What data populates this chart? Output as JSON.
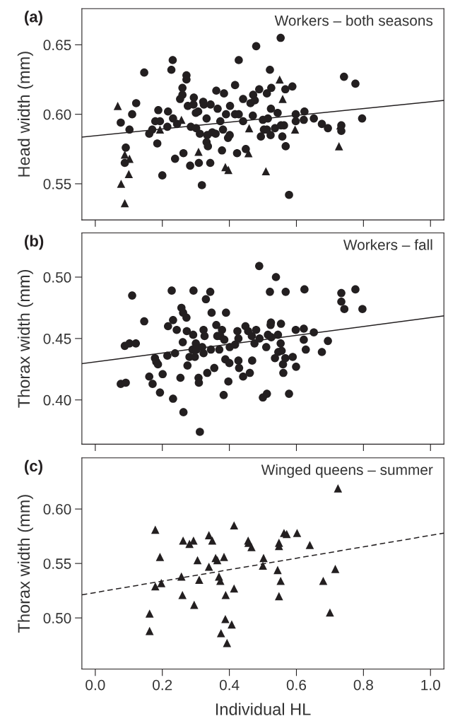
{
  "chart_data": [
    {
      "type": "scatter",
      "annotations": [
        "(a)",
        "Workers – both seasons"
      ],
      "ylabel": "Head width (mm)",
      "xlim": [
        -0.04,
        1.04
      ],
      "ylim": [
        0.524,
        0.676
      ],
      "xticks": [
        {
          "value": 0,
          "label": null
        },
        {
          "value": 0.2,
          "label": null
        },
        {
          "value": 0.4,
          "label": null
        },
        {
          "value": 0.6,
          "label": null
        },
        {
          "value": 0.8,
          "label": null
        },
        {
          "value": 1.0,
          "label": null
        }
      ],
      "yticks": [
        0.55,
        {
          "value": 0.6,
          "label": "0.60"
        },
        0.65
      ],
      "tick_labels": "y",
      "grid": false,
      "legend": false,
      "series": [
        {
          "type": "scatter",
          "marker": "circle",
          "color": "#231f20",
          "x": [
            0.076,
            0.11,
            0.122,
            0.102,
            0.091,
            0.088,
            0.146,
            0.161,
            0.17,
            0.179,
            0.188,
            0.193,
            0.185,
            0.2,
            0.215,
            0.217,
            0.231,
            0.227,
            0.232,
            0.238,
            0.244,
            0.26,
            0.26,
            0.253,
            0.263,
            0.272,
            0.272,
            0.276,
            0.283,
            0.285,
            0.294,
            0.293,
            0.3,
            0.301,
            0.307,
            0.309,
            0.318,
            0.312,
            0.322,
            0.324,
            0.332,
            0.332,
            0.336,
            0.334,
            0.343,
            0.344,
            0.349,
            0.361,
            0.365,
            0.359,
            0.378,
            0.384,
            0.373,
            0.381,
            0.39,
            0.396,
            0.402,
            0.401,
            0.417,
            0.423,
            0.428,
            0.417,
            0.428,
            0.441,
            0.441,
            0.449,
            0.463,
            0.471,
            0.476,
            0.47,
            0.48,
            0.489,
            0.5,
            0.494,
            0.503,
            0.512,
            0.515,
            0.521,
            0.524,
            0.525,
            0.523,
            0.512,
            0.536,
            0.553,
            0.544,
            0.554,
            0.563,
            0.558,
            0.568,
            0.567,
            0.588,
            0.578,
            0.598,
            0.598,
            0.624,
            0.622,
            0.652,
            0.676,
            0.694,
            0.734,
            0.734,
            0.742,
            0.776,
            0.796
          ],
          "values": [
            0.594,
            0.6,
            0.608,
            0.589,
            0.576,
            0.565,
            0.63,
            0.586,
            0.589,
            0.595,
            0.603,
            0.595,
            0.579,
            0.556,
            0.591,
            0.602,
            0.639,
            0.632,
            0.597,
            0.568,
            0.593,
            0.619,
            0.614,
            0.611,
            0.572,
            0.628,
            0.625,
            0.606,
            0.563,
            0.591,
            0.612,
            0.607,
            0.601,
            0.59,
            0.602,
            0.565,
            0.549,
            0.586,
            0.609,
            0.607,
            0.597,
            0.58,
            0.577,
            0.585,
            0.565,
            0.607,
            0.587,
            0.617,
            0.604,
            0.586,
            0.574,
            0.615,
            0.595,
            0.589,
            0.6,
            0.583,
            0.606,
            0.585,
            0.621,
            0.572,
            0.639,
            0.6,
            0.6,
            0.595,
            0.611,
            0.575,
            0.608,
            0.614,
            0.61,
            0.599,
            0.649,
            0.618,
            0.596,
            0.584,
            0.589,
            0.615,
            0.597,
            0.632,
            0.604,
            0.619,
            0.585,
            0.589,
            0.59,
            0.655,
            0.601,
            0.592,
            0.592,
            0.584,
            0.577,
            0.618,
            0.62,
            0.542,
            0.6,
            0.595,
            0.602,
            0.596,
            0.597,
            0.593,
            0.59,
            0.592,
            0.588,
            0.627,
            0.622,
            0.597
          ]
        },
        {
          "type": "scatter",
          "marker": "triangle",
          "color": "#231f20",
          "x": [
            0.067,
            0.088,
            0.077,
            0.1,
            0.088,
            0.102,
            0.193,
            0.257,
            0.308,
            0.388,
            0.397,
            0.459,
            0.457,
            0.509,
            0.55,
            0.559,
            0.596,
            0.727,
            0.731
          ],
          "values": [
            0.606,
            0.536,
            0.55,
            0.557,
            0.571,
            0.568,
            0.589,
            0.596,
            0.573,
            0.562,
            0.56,
            0.59,
            0.572,
            0.559,
            0.625,
            0.611,
            0.589,
            0.577,
            0.592
          ]
        },
        {
          "type": "line",
          "line_style": "solid",
          "color": "#231f20",
          "x": [
            -0.04,
            1.04
          ],
          "values": [
            0.5836,
            0.61
          ]
        }
      ]
    },
    {
      "type": "scatter",
      "annotations": [
        "(b)",
        "Workers – fall"
      ],
      "ylabel": "Thorax width (mm)",
      "xlim": [
        -0.04,
        1.04
      ],
      "ylim": [
        0.364,
        0.536
      ],
      "xticks": [
        {
          "value": 0,
          "label": null
        },
        {
          "value": 0.2,
          "label": null
        },
        {
          "value": 0.4,
          "label": null
        },
        {
          "value": 0.6,
          "label": null
        },
        {
          "value": 0.8,
          "label": null
        },
        {
          "value": 1.0,
          "label": null
        }
      ],
      "yticks": [
        {
          "value": 0.4,
          "label": "0.40"
        },
        0.45,
        {
          "value": 0.5,
          "label": "0.50"
        }
      ],
      "tick_labels": "y",
      "grid": false,
      "legend": false,
      "series": [
        {
          "type": "scatter",
          "marker": "circle",
          "color": "#231f20",
          "x": [
            0.076,
            0.091,
            0.088,
            0.102,
            0.121,
            0.11,
            0.146,
            0.161,
            0.171,
            0.178,
            0.182,
            0.187,
            0.193,
            0.201,
            0.215,
            0.217,
            0.228,
            0.232,
            0.232,
            0.238,
            0.243,
            0.254,
            0.257,
            0.262,
            0.272,
            0.261,
            0.273,
            0.263,
            0.275,
            0.281,
            0.293,
            0.292,
            0.29,
            0.297,
            0.3,
            0.302,
            0.308,
            0.309,
            0.312,
            0.319,
            0.323,
            0.323,
            0.326,
            0.33,
            0.334,
            0.343,
            0.345,
            0.347,
            0.355,
            0.361,
            0.37,
            0.364,
            0.378,
            0.373,
            0.383,
            0.385,
            0.39,
            0.388,
            0.4,
            0.397,
            0.401,
            0.417,
            0.424,
            0.427,
            0.427,
            0.429,
            0.441,
            0.448,
            0.456,
            0.461,
            0.467,
            0.468,
            0.475,
            0.48,
            0.489,
            0.49,
            0.5,
            0.51,
            0.512,
            0.515,
            0.521,
            0.524,
            0.523,
            0.525,
            0.536,
            0.539,
            0.545,
            0.546,
            0.553,
            0.554,
            0.556,
            0.56,
            0.561,
            0.568,
            0.567,
            0.578,
            0.589,
            0.598,
            0.599,
            0.622,
            0.624,
            0.622,
            0.628,
            0.652,
            0.676,
            0.694,
            0.734,
            0.734,
            0.743,
            0.776,
            0.797
          ],
          "values": [
            0.413,
            0.414,
            0.444,
            0.446,
            0.446,
            0.485,
            0.464,
            0.419,
            0.413,
            0.434,
            0.431,
            0.429,
            0.406,
            0.421,
            0.436,
            0.46,
            0.489,
            0.465,
            0.401,
            0.438,
            0.457,
            0.418,
            0.475,
            0.471,
            0.467,
            0.447,
            0.456,
            0.39,
            0.428,
            0.435,
            0.489,
            0.453,
            0.441,
            0.435,
            0.446,
            0.441,
            0.418,
            0.414,
            0.374,
            0.443,
            0.438,
            0.457,
            0.452,
            0.482,
            0.422,
            0.488,
            0.441,
            0.471,
            0.426,
            0.461,
            0.441,
            0.452,
            0.457,
            0.452,
            0.404,
            0.449,
            0.471,
            0.433,
            0.43,
            0.415,
            0.443,
            0.445,
            0.456,
            0.45,
            0.432,
            0.426,
            0.419,
            0.46,
            0.456,
            0.422,
            0.452,
            0.432,
            0.446,
            0.457,
            0.509,
            0.45,
            0.402,
            0.443,
            0.405,
            0.453,
            0.488,
            0.463,
            0.461,
            0.451,
            0.434,
            0.5,
            0.453,
            0.439,
            0.446,
            0.462,
            0.44,
            0.429,
            0.422,
            0.488,
            0.434,
            0.405,
            0.435,
            0.457,
            0.427,
            0.458,
            0.49,
            0.449,
            0.441,
            0.455,
            0.439,
            0.448,
            0.487,
            0.48,
            0.474,
            0.49,
            0.474
          ]
        },
        {
          "type": "line",
          "line_style": "solid",
          "color": "#231f20",
          "x": [
            -0.04,
            1.04
          ],
          "values": [
            0.4295,
            0.4684
          ]
        }
      ]
    },
    {
      "type": "scatter",
      "annotations": [
        "(c)",
        "Winged queens – summer"
      ],
      "xlabel": "Individual HL",
      "ylabel": "Thorax width (mm)",
      "xlim": [
        -0.04,
        1.04
      ],
      "ylim": [
        0.453,
        0.647
      ],
      "xticks": [
        {
          "value": 0,
          "label": "0.0"
        },
        {
          "value": 0.2,
          "label": "0.2"
        },
        {
          "value": 0.4,
          "label": "0.4"
        },
        {
          "value": 0.6,
          "label": "0.6"
        },
        {
          "value": 0.8,
          "label": "0.8"
        },
        {
          "value": 1.0,
          "label": "1.0"
        }
      ],
      "yticks": [
        {
          "value": 0.5,
          "label": "0.50"
        },
        0.55,
        {
          "value": 0.6,
          "label": "0.60"
        }
      ],
      "grid": false,
      "legend": false,
      "series": [
        {
          "type": "scatter",
          "marker": "triangle",
          "color": "#231f20",
          "x": [
            0.179,
            0.162,
            0.162,
            0.193,
            0.179,
            0.197,
            0.262,
            0.281,
            0.293,
            0.257,
            0.26,
            0.295,
            0.305,
            0.31,
            0.339,
            0.349,
            0.339,
            0.359,
            0.364,
            0.384,
            0.369,
            0.373,
            0.389,
            0.414,
            0.414,
            0.388,
            0.375,
            0.407,
            0.393,
            0.456,
            0.457,
            0.466,
            0.502,
            0.5,
            0.548,
            0.548,
            0.544,
            0.553,
            0.548,
            0.563,
            0.571,
            0.602,
            0.64,
            0.68,
            0.7,
            0.716,
            0.724
          ],
          "values": [
            0.581,
            0.504,
            0.488,
            0.556,
            0.529,
            0.532,
            0.571,
            0.568,
            0.571,
            0.538,
            0.521,
            0.512,
            0.553,
            0.535,
            0.576,
            0.571,
            0.547,
            0.555,
            0.553,
            0.556,
            0.538,
            0.534,
            0.521,
            0.585,
            0.527,
            0.499,
            0.486,
            0.494,
            0.477,
            0.571,
            0.569,
            0.565,
            0.555,
            0.548,
            0.569,
            0.566,
            0.544,
            0.534,
            0.52,
            0.578,
            0.577,
            0.578,
            0.567,
            0.534,
            0.505,
            0.545,
            0.619
          ]
        },
        {
          "type": "line",
          "line_style": "dashed",
          "color": "#231f20",
          "x": [
            -0.04,
            1.04
          ],
          "values": [
            0.5212,
            0.5779
          ]
        }
      ]
    }
  ]
}
